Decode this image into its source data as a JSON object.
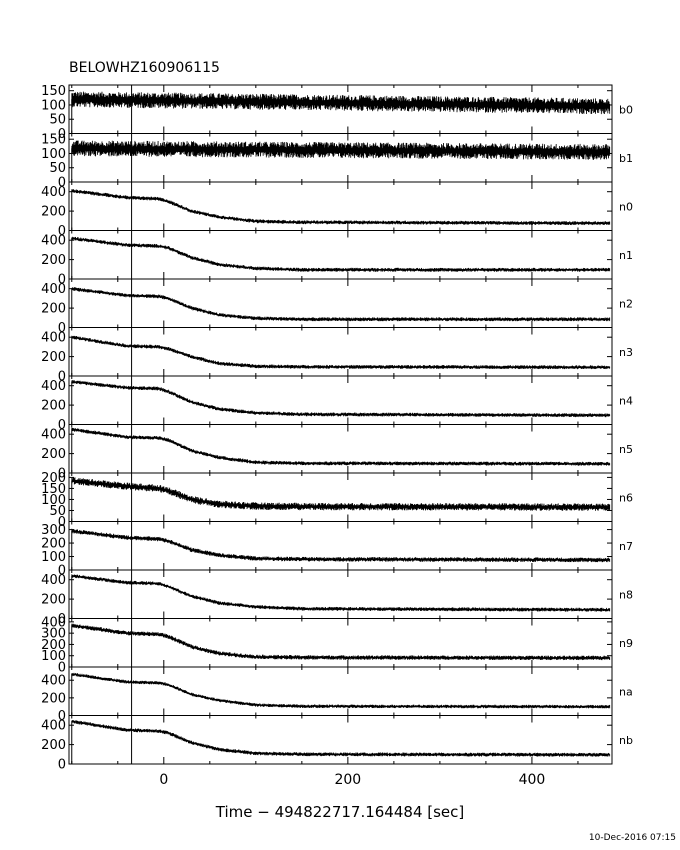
{
  "chart_data": {
    "type": "line",
    "title": "BELOWHZ160906115",
    "xlabel": "Time − 494822717.164484 [sec]",
    "xlim": [
      -103,
      487
    ],
    "x_ticks": [
      0,
      200,
      400
    ],
    "x_tick_labels": [
      "0",
      "200",
      "400"
    ],
    "x_minor_ticks": [
      -100,
      -50,
      50,
      100,
      150,
      250,
      300,
      350,
      450
    ],
    "reference_line_x": -35,
    "data_start_x": -100,
    "data_end_x": 485,
    "timestamp": "10-Dec-2016 07:15",
    "panels": [
      {
        "name": "b0",
        "ylim": [
          0,
          170
        ],
        "yticks": [
          0,
          50,
          100,
          150
        ],
        "ytick_labels": [
          "0",
          "50",
          "100",
          "150"
        ],
        "curve": [
          [
            -100,
            120
          ],
          [
            485,
            95
          ]
        ],
        "noise": 20
      },
      {
        "name": "b1",
        "ylim": [
          0,
          170
        ],
        "yticks": [
          0,
          50,
          100,
          150
        ],
        "ytick_labels": [
          "0",
          "50",
          "100",
          "150"
        ],
        "curve": [
          [
            -100,
            118
          ],
          [
            485,
            105
          ]
        ],
        "noise": 20
      },
      {
        "name": "n0",
        "ylim": [
          0,
          500
        ],
        "yticks": [
          0,
          200,
          400
        ],
        "ytick_labels": [
          "0",
          "200",
          "400"
        ],
        "curve": [
          [
            -100,
            410
          ],
          [
            -40,
            340
          ],
          [
            -5,
            325
          ],
          [
            5,
            300
          ],
          [
            30,
            200
          ],
          [
            60,
            140
          ],
          [
            100,
            95
          ],
          [
            150,
            85
          ],
          [
            485,
            75
          ]
        ],
        "noise": 14
      },
      {
        "name": "n1",
        "ylim": [
          0,
          500
        ],
        "yticks": [
          0,
          200,
          400
        ],
        "ytick_labels": [
          "0",
          "200",
          "400"
        ],
        "curve": [
          [
            -100,
            420
          ],
          [
            -40,
            350
          ],
          [
            -5,
            340
          ],
          [
            5,
            320
          ],
          [
            30,
            220
          ],
          [
            60,
            150
          ],
          [
            100,
            110
          ],
          [
            150,
            95
          ],
          [
            485,
            95
          ]
        ],
        "noise": 14
      },
      {
        "name": "n2",
        "ylim": [
          0,
          500
        ],
        "yticks": [
          0,
          200,
          400
        ],
        "ytick_labels": [
          "0",
          "200",
          "400"
        ],
        "curve": [
          [
            -100,
            400
          ],
          [
            -40,
            330
          ],
          [
            -5,
            320
          ],
          [
            5,
            300
          ],
          [
            30,
            200
          ],
          [
            60,
            130
          ],
          [
            100,
            95
          ],
          [
            150,
            85
          ],
          [
            485,
            85
          ]
        ],
        "noise": 14
      },
      {
        "name": "n3",
        "ylim": [
          0,
          500
        ],
        "yticks": [
          0,
          200,
          400
        ],
        "ytick_labels": [
          "0",
          "200",
          "400"
        ],
        "curve": [
          [
            -100,
            400
          ],
          [
            -40,
            310
          ],
          [
            -5,
            300
          ],
          [
            5,
            280
          ],
          [
            30,
            200
          ],
          [
            60,
            130
          ],
          [
            100,
            100
          ],
          [
            150,
            95
          ],
          [
            485,
            90
          ]
        ],
        "noise": 14
      },
      {
        "name": "n4",
        "ylim": [
          0,
          500
        ],
        "yticks": [
          0,
          200,
          400
        ],
        "ytick_labels": [
          "0",
          "200",
          "400"
        ],
        "curve": [
          [
            -100,
            440
          ],
          [
            -40,
            380
          ],
          [
            -5,
            370
          ],
          [
            5,
            340
          ],
          [
            30,
            230
          ],
          [
            60,
            160
          ],
          [
            100,
            120
          ],
          [
            150,
            105
          ],
          [
            485,
            95
          ]
        ],
        "noise": 14
      },
      {
        "name": "n5",
        "ylim": [
          0,
          500
        ],
        "yticks": [
          0,
          200,
          400
        ],
        "ytick_labels": [
          "0",
          "200",
          "400"
        ],
        "curve": [
          [
            -100,
            450
          ],
          [
            -40,
            370
          ],
          [
            -5,
            360
          ],
          [
            5,
            340
          ],
          [
            30,
            230
          ],
          [
            60,
            160
          ],
          [
            100,
            110
          ],
          [
            150,
            100
          ],
          [
            485,
            95
          ]
        ],
        "noise": 14
      },
      {
        "name": "n6",
        "ylim": [
          0,
          220
        ],
        "yticks": [
          0,
          50,
          100,
          150,
          200
        ],
        "ytick_labels": [
          "0",
          "50",
          "100",
          "150",
          "200"
        ],
        "curve": [
          [
            -100,
            185
          ],
          [
            -40,
            160
          ],
          [
            -5,
            150
          ],
          [
            5,
            140
          ],
          [
            30,
            100
          ],
          [
            60,
            78
          ],
          [
            100,
            70
          ],
          [
            150,
            68
          ],
          [
            485,
            65
          ]
        ],
        "noise": 12
      },
      {
        "name": "n7",
        "ylim": [
          0,
          360
        ],
        "yticks": [
          0,
          100,
          200,
          300
        ],
        "ytick_labels": [
          "0",
          "100",
          "200",
          "300"
        ],
        "curve": [
          [
            -100,
            290
          ],
          [
            -40,
            240
          ],
          [
            -5,
            230
          ],
          [
            5,
            215
          ],
          [
            30,
            150
          ],
          [
            60,
            110
          ],
          [
            100,
            85
          ],
          [
            150,
            80
          ],
          [
            485,
            75
          ]
        ],
        "noise": 12
      },
      {
        "name": "n8",
        "ylim": [
          0,
          500
        ],
        "yticks": [
          0,
          200,
          400
        ],
        "ytick_labels": [
          "0",
          "200",
          "400"
        ],
        "curve": [
          [
            -100,
            440
          ],
          [
            -40,
            370
          ],
          [
            -5,
            360
          ],
          [
            5,
            330
          ],
          [
            30,
            230
          ],
          [
            60,
            160
          ],
          [
            100,
            120
          ],
          [
            150,
            100
          ],
          [
            485,
            90
          ]
        ],
        "noise": 14
      },
      {
        "name": "n9",
        "ylim": [
          0,
          430
        ],
        "yticks": [
          0,
          100,
          200,
          300,
          400
        ],
        "ytick_labels": [
          "0",
          "100",
          "200",
          "300",
          "400"
        ],
        "curve": [
          [
            -100,
            370
          ],
          [
            -40,
            300
          ],
          [
            -5,
            290
          ],
          [
            5,
            270
          ],
          [
            30,
            180
          ],
          [
            60,
            120
          ],
          [
            100,
            90
          ],
          [
            150,
            85
          ],
          [
            485,
            80
          ]
        ],
        "noise": 14
      },
      {
        "name": "na",
        "ylim": [
          0,
          550
        ],
        "yticks": [
          0,
          200,
          400
        ],
        "ytick_labels": [
          "0",
          "200",
          "400"
        ],
        "curve": [
          [
            -100,
            470
          ],
          [
            -40,
            380
          ],
          [
            -5,
            370
          ],
          [
            5,
            350
          ],
          [
            30,
            240
          ],
          [
            60,
            170
          ],
          [
            100,
            120
          ],
          [
            150,
            105
          ],
          [
            485,
            100
          ]
        ],
        "noise": 14
      },
      {
        "name": "nb",
        "ylim": [
          0,
          500
        ],
        "yticks": [
          0,
          200,
          400
        ],
        "ytick_labels": [
          "0",
          "200",
          "400"
        ],
        "curve": [
          [
            -100,
            440
          ],
          [
            -40,
            350
          ],
          [
            -5,
            340
          ],
          [
            5,
            320
          ],
          [
            30,
            220
          ],
          [
            60,
            150
          ],
          [
            100,
            110
          ],
          [
            150,
            100
          ],
          [
            485,
            95
          ]
        ],
        "noise": 14
      }
    ]
  }
}
